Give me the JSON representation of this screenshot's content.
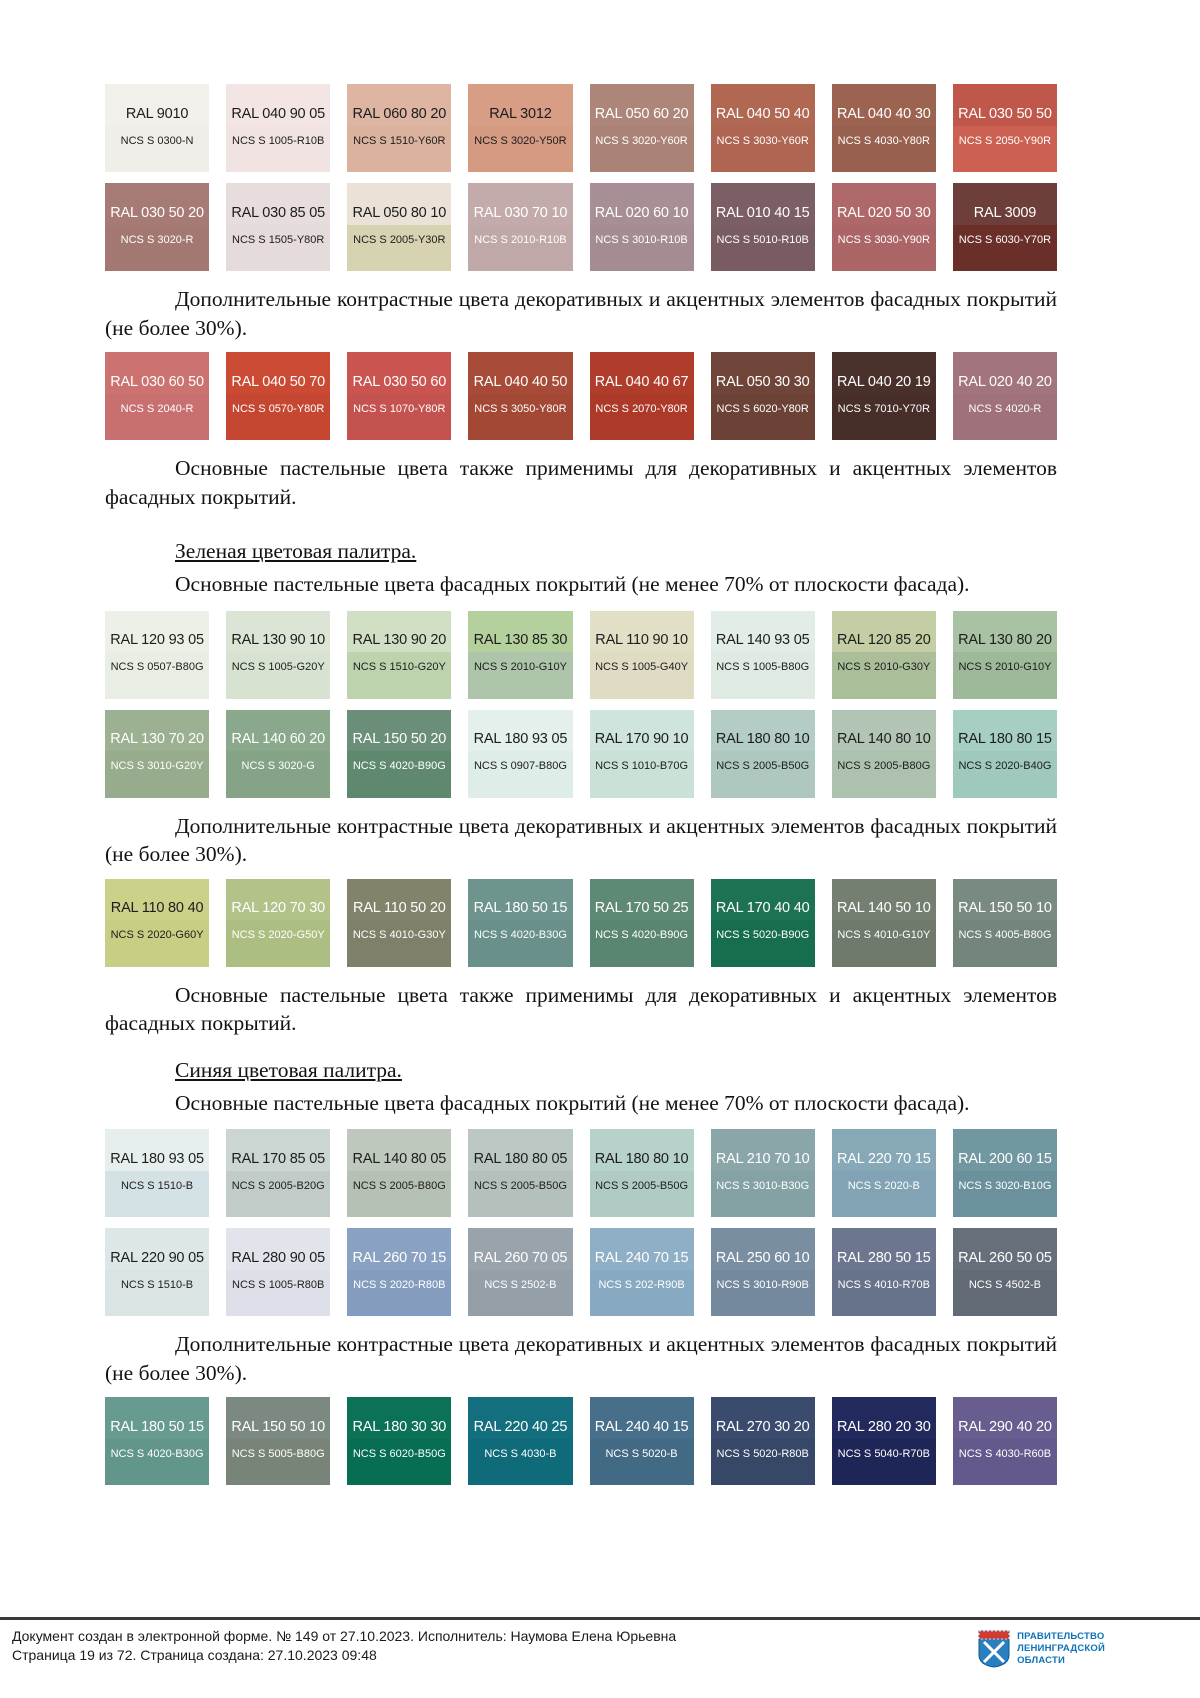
{
  "texts": {
    "contrast_paragraph": "Дополнительные контрастные цвета декоративных и акцентных элементов фасадных покрытий (не более 30%).",
    "pastel_also_paragraph": "Основные пастельные цвета также применимы для декоративных и акцентных элементов фасадных покрытий.",
    "green_heading": "Зеленая цветовая палитра.",
    "blue_heading": "Синяя цветовая палитра.",
    "main_pastel_paragraph": "Основные пастельные цвета фасадных покрытий (не менее 70% от плоскости фасада)."
  },
  "palettes": {
    "red_main": [
      [
        {
          "ral": "RAL 9010",
          "ncs": "NCS S 0300-N",
          "top": "#f1f0eb",
          "bottom": "#efeee8",
          "tc": "dark"
        },
        {
          "ral": "RAL 040 90 05",
          "ncs": "NCS S 1005-R10B",
          "top": "#f2e5e3",
          "bottom": "#f0e3e1",
          "tc": "dark"
        },
        {
          "ral": "RAL 060 80 20",
          "ncs": "NCS S 1510-Y60R",
          "top": "#ddb5a2",
          "bottom": "#dab29e",
          "tc": "dark"
        },
        {
          "ral": "RAL 3012",
          "ncs": "NCS S 3020-Y50R",
          "top": "#d79d85",
          "bottom": "#d49a82",
          "tc": "dark"
        },
        {
          "ral": "RAL 050 60 20",
          "ncs": "NCS S 3020-Y60R",
          "top": "#ad8679",
          "bottom": "#aa8376",
          "tc": "light"
        },
        {
          "ral": "RAL 040 50 40",
          "ncs": "NCS S 3030-Y60R",
          "top": "#b16853",
          "bottom": "#ae6551",
          "tc": "light"
        },
        {
          "ral": "RAL 040 40 30",
          "ncs": "NCS S 4030-Y80R",
          "top": "#9b6350",
          "bottom": "#98604e",
          "tc": "light"
        },
        {
          "ral": "RAL 030 50 50",
          "ncs": "NCS S 2050-Y90R",
          "top": "#bf574a",
          "bottom": "#cc6153",
          "tc": "light"
        }
      ],
      [
        {
          "ral": "RAL 030 50 20",
          "ncs": "NCS S 3020-R",
          "top": "#a67a75",
          "bottom": "#a37872",
          "tc": "light"
        },
        {
          "ral": "RAL 030 85 05",
          "ncs": "NCS S 1505-Y80R",
          "top": "#e7dddc",
          "bottom": "#e5dbda",
          "tc": "dark"
        },
        {
          "ral": "RAL 050 80 10",
          "ncs": "NCS S 2005-Y30R",
          "top": "#eae2d7",
          "bottom": "#d7d3b2",
          "tc": "dark"
        },
        {
          "ral": "RAL 030 70 10",
          "ncs": "NCS S 2010-R10B",
          "top": "#c3aaab",
          "bottom": "#c0a8a9",
          "tc": "light"
        },
        {
          "ral": "RAL 020 60 10",
          "ncs": "NCS S 3010-R10B",
          "top": "#a78f95",
          "bottom": "#a48c92",
          "tc": "light"
        },
        {
          "ral": "RAL 010 40 15",
          "ncs": "NCS S 5010-R10B",
          "top": "#7c5e65",
          "bottom": "#795b62",
          "tc": "light"
        },
        {
          "ral": "RAL 020 50 30",
          "ncs": "NCS S 3030-Y90R",
          "top": "#af686a",
          "bottom": "#ac6567",
          "tc": "light"
        },
        {
          "ral": "RAL 3009",
          "ncs": "NCS S 6030-Y70R",
          "top": "#6d3e3a",
          "bottom": "#6a2f28",
          "tc": "light"
        }
      ]
    ],
    "red_contrast": [
      [
        {
          "ral": "RAL 030 60 50",
          "ncs": "NCS S 2040-R",
          "top": "#cc7271",
          "bottom": "#c87070",
          "tc": "light"
        },
        {
          "ral": "RAL 040 50 70",
          "ncs": "NCS S 0570-Y80R",
          "top": "#cb4a33",
          "bottom": "#c64731",
          "tc": "light"
        },
        {
          "ral": "RAL 030 50 60",
          "ncs": "NCS S 1070-Y80R",
          "top": "#c95450",
          "bottom": "#c4524e",
          "tc": "light"
        },
        {
          "ral": "RAL 040 40 50",
          "ncs": "NCS S 3050-Y80R",
          "top": "#a74a38",
          "bottom": "#a44836",
          "tc": "light"
        },
        {
          "ral": "RAL 040 40 67",
          "ncs": "NCS S 2070-Y80R",
          "top": "#b03c2b",
          "bottom": "#ad3a29",
          "tc": "light"
        },
        {
          "ral": "RAL 050 30 30",
          "ncs": "NCS S 6020-Y80R",
          "top": "#6f4439",
          "bottom": "#6c4237",
          "tc": "light"
        },
        {
          "ral": "RAL 040 20 19",
          "ncs": "NCS S 7010-Y70R",
          "top": "#49302a",
          "bottom": "#472e28",
          "tc": "light"
        },
        {
          "ral": "RAL 020 40 20",
          "ncs": "NCS S 4020-R",
          "top": "#a2747e",
          "bottom": "#9f727b",
          "tc": "light"
        }
      ]
    ],
    "green_main": [
      [
        {
          "ral": "RAL 120 93 05",
          "ncs": "NCS S 0507-B80G",
          "top": "#edf0e7",
          "bottom": "#e8eee3",
          "tc": "dark"
        },
        {
          "ral": "RAL 130 90 10",
          "ncs": "NCS S 1005-G20Y",
          "top": "#dce5d5",
          "bottom": "#d8e2d1",
          "tc": "dark"
        },
        {
          "ral": "RAL 130 90 20",
          "ncs": "NCS S 1510-G20Y",
          "top": "#d1dfc4",
          "bottom": "#bdd3ad",
          "tc": "dark"
        },
        {
          "ral": "RAL 130 85 30",
          "ncs": "NCS S 2010-G10Y",
          "top": "#b4d19d",
          "bottom": "#aec4ab",
          "tc": "dark"
        },
        {
          "ral": "RAL 110 90 10",
          "ncs": "NCS S 1005-G40Y",
          "top": "#e2dfc7",
          "bottom": "#dfdcc3",
          "tc": "dark"
        },
        {
          "ral": "RAL 140 93 05",
          "ncs": "NCS S 1005-B80G",
          "top": "#e3ede7",
          "bottom": "#deeae2",
          "tc": "dark"
        },
        {
          "ral": "RAL 120 85 20",
          "ncs": "NCS S 2010-G30Y",
          "top": "#c3cea4",
          "bottom": "#aabe99",
          "tc": "dark"
        },
        {
          "ral": "RAL 130 80 20",
          "ncs": "NCS S 2010-G10Y",
          "top": "#a8c2a3",
          "bottom": "#9eb89a",
          "tc": "dark"
        }
      ],
      [
        {
          "ral": "RAL 130 70 20",
          "ncs": "NCS S 3010-G20Y",
          "top": "#9bb192",
          "bottom": "#96ac8d",
          "tc": "light"
        },
        {
          "ral": "RAL 140 60 20",
          "ncs": "NCS S 3020-G",
          "top": "#89a88c",
          "bottom": "#84a387",
          "tc": "light"
        },
        {
          "ral": "RAL 150 50 20",
          "ncs": "NCS S 4020-B90G",
          "top": "#6a8e77",
          "bottom": "#5e896f",
          "tc": "light"
        },
        {
          "ral": "RAL 180 93 05",
          "ncs": "NCS S 0907-B80G",
          "top": "#e3f0eb",
          "bottom": "#deede7",
          "tc": "dark"
        },
        {
          "ral": "RAL 170 90 10",
          "ncs": "NCS S 1010-B70G",
          "top": "#cee4dc",
          "bottom": "#c9e1d7",
          "tc": "dark"
        },
        {
          "ral": "RAL 180 80 10",
          "ncs": "NCS S 2005-B50G",
          "top": "#b3ccc5",
          "bottom": "#aec8c0",
          "tc": "dark"
        },
        {
          "ral": "RAL 140 80 10",
          "ncs": "NCS S 2005-B80G",
          "top": "#b2c5b4",
          "bottom": "#adc1af",
          "tc": "dark"
        },
        {
          "ral": "RAL 180 80 15",
          "ncs": "NCS S 2020-B40G",
          "top": "#a6cec3",
          "bottom": "#9ec9bc",
          "tc": "dark"
        }
      ]
    ],
    "green_contrast": [
      [
        {
          "ral": "RAL 110 80 40",
          "ncs": "NCS S 2020-G60Y",
          "top": "#ccd18a",
          "bottom": "#c8ce84",
          "tc": "dark"
        },
        {
          "ral": "RAL 120 70 30",
          "ncs": "NCS S 2020-G50Y",
          "top": "#b2c289",
          "bottom": "#adbe83",
          "tc": "light"
        },
        {
          "ral": "RAL 110 50 20",
          "ncs": "NCS S 4010-G30Y",
          "top": "#83836b",
          "bottom": "#7f8069",
          "tc": "light"
        },
        {
          "ral": "RAL 180 50 15",
          "ncs": "NCS S 4020-B30G",
          "top": "#6e948e",
          "bottom": "#69908a",
          "tc": "light"
        },
        {
          "ral": "RAL 170 50 25",
          "ncs": "NCS S 4020-B90G",
          "top": "#5e8975",
          "bottom": "#598571",
          "tc": "light"
        },
        {
          "ral": "RAL 170 40 40",
          "ncs": "NCS S 5020-B90G",
          "top": "#1c7253",
          "bottom": "#176e4f",
          "tc": "light"
        },
        {
          "ral": "RAL 140 50 10",
          "ncs": "NCS S 4010-G10Y",
          "top": "#747f71",
          "bottom": "#6f7a6d",
          "tc": "light"
        },
        {
          "ral": "RAL 150 50 10",
          "ncs": "NCS S 4005-B80G",
          "top": "#798a81",
          "bottom": "#74857c",
          "tc": "light"
        }
      ]
    ],
    "blue_main": [
      [
        {
          "ral": "RAL 180 93 05",
          "ncs": "NCS S 1510-B",
          "top": "#e6efed",
          "bottom": "#d4e1e5",
          "tc": "dark"
        },
        {
          "ral": "RAL 170 85 05",
          "ncs": "NCS S 2005-B20G",
          "top": "#cbd5d1",
          "bottom": "#c1cbc7",
          "tc": "dark"
        },
        {
          "ral": "RAL 140 80 05",
          "ncs": "NCS S 2005-B80G",
          "top": "#bec8bc",
          "bottom": "#b6c1b5",
          "tc": "dark"
        },
        {
          "ral": "RAL 180 80 05",
          "ncs": "NCS S 2005-B50G",
          "top": "#bbc7c3",
          "bottom": "#b3c0bc",
          "tc": "dark"
        },
        {
          "ral": "RAL 180 80 10",
          "ncs": "NCS S 2005-B50G",
          "top": "#b7d1cb",
          "bottom": "#afcbc4",
          "tc": "dark"
        },
        {
          "ral": "RAL 210 70 10",
          "ncs": "NCS S 3010-B30G",
          "top": "#8aa6a8",
          "bottom": "#84a1a3",
          "tc": "light"
        },
        {
          "ral": "RAL 220 70 15",
          "ncs": "NCS S 2020-B",
          "top": "#87a8b7",
          "bottom": "#81a3b3",
          "tc": "light"
        },
        {
          "ral": "RAL 200 60 15",
          "ncs": "NCS S 3020-B10G",
          "top": "#7197a1",
          "bottom": "#6b929c",
          "tc": "light"
        }
      ],
      [
        {
          "ral": "RAL 220 90 05",
          "ncs": "NCS S 1510-B",
          "top": "#dee7e7",
          "bottom": "#dae4e4",
          "tc": "dark"
        },
        {
          "ral": "RAL 280 90 05",
          "ncs": "NCS S 1005-R80B",
          "top": "#e1e4eb",
          "bottom": "#dde0e8",
          "tc": "dark"
        },
        {
          "ral": "RAL 260 70 15",
          "ncs": "NCS S 2020-R80B",
          "top": "#8aa2c2",
          "bottom": "#849dbf",
          "tc": "light"
        },
        {
          "ral": "RAL 260 70 05",
          "ncs": "NCS S 2502-B",
          "top": "#99a3ac",
          "bottom": "#949fa8",
          "tc": "light"
        },
        {
          "ral": "RAL 240 70 15",
          "ncs": "NCS S 202-R90B",
          "top": "#8eafc6",
          "bottom": "#87aac2",
          "tc": "light"
        },
        {
          "ral": "RAL 250 60 10",
          "ncs": "NCS S 3010-R90B",
          "top": "#7a8ea1",
          "bottom": "#74899d",
          "tc": "light"
        },
        {
          "ral": "RAL 280 50 15",
          "ncs": "NCS S 4010-R70B",
          "top": "#6c778f",
          "bottom": "#67728b",
          "tc": "light"
        },
        {
          "ral": "RAL 260 50 05",
          "ncs": "NCS S 4502-B",
          "top": "#676f7b",
          "bottom": "#626a76",
          "tc": "light"
        }
      ]
    ],
    "blue_contrast": [
      [
        {
          "ral": "RAL 180 50 15",
          "ncs": "NCS S 4020-B30G",
          "top": "#689b8f",
          "bottom": "#63968a",
          "tc": "light"
        },
        {
          "ral": "RAL 150 50 10",
          "ncs": "NCS S 5005-B80G",
          "top": "#7c8980",
          "bottom": "#778477",
          "tc": "light"
        },
        {
          "ral": "RAL 180 30 30",
          "ncs": "NCS S 6020-B50G",
          "top": "#0b7157",
          "bottom": "#076d53",
          "tc": "light"
        },
        {
          "ral": "RAL 220 40 25",
          "ncs": "NCS S 4030-B",
          "top": "#136f7e",
          "bottom": "#0f6a7a",
          "tc": "light"
        },
        {
          "ral": "RAL 240 40 15",
          "ncs": "NCS S 5020-B",
          "top": "#486f89",
          "bottom": "#436a84",
          "tc": "light"
        },
        {
          "ral": "RAL 270 30 20",
          "ncs": "NCS S 5020-R80B",
          "top": "#3b4b6d",
          "bottom": "#364767",
          "tc": "light"
        },
        {
          "ral": "RAL 280 20 30",
          "ncs": "NCS S 5040-R70B",
          "top": "#222a5d",
          "bottom": "#1e2557",
          "tc": "light"
        },
        {
          "ral": "RAL 290 40 20",
          "ncs": "NCS S 4030-R60B",
          "top": "#695d90",
          "bottom": "#64598c",
          "tc": "light"
        }
      ]
    ]
  },
  "footer": {
    "line1": "Документ создан в электронной форме. № 149 от 27.10.2023. Исполнитель: Наумова Елена Юрьевна",
    "line2": "Страница 19 из 72. Страница создана: 27.10.2023 09:48",
    "logo_line1": "ПРАВИТЕЛЬСТВО",
    "logo_line2": "ЛЕНИНГРАДСКОЙ",
    "logo_line3": "ОБЛАСТИ",
    "logo_color": "#0d72b8"
  }
}
